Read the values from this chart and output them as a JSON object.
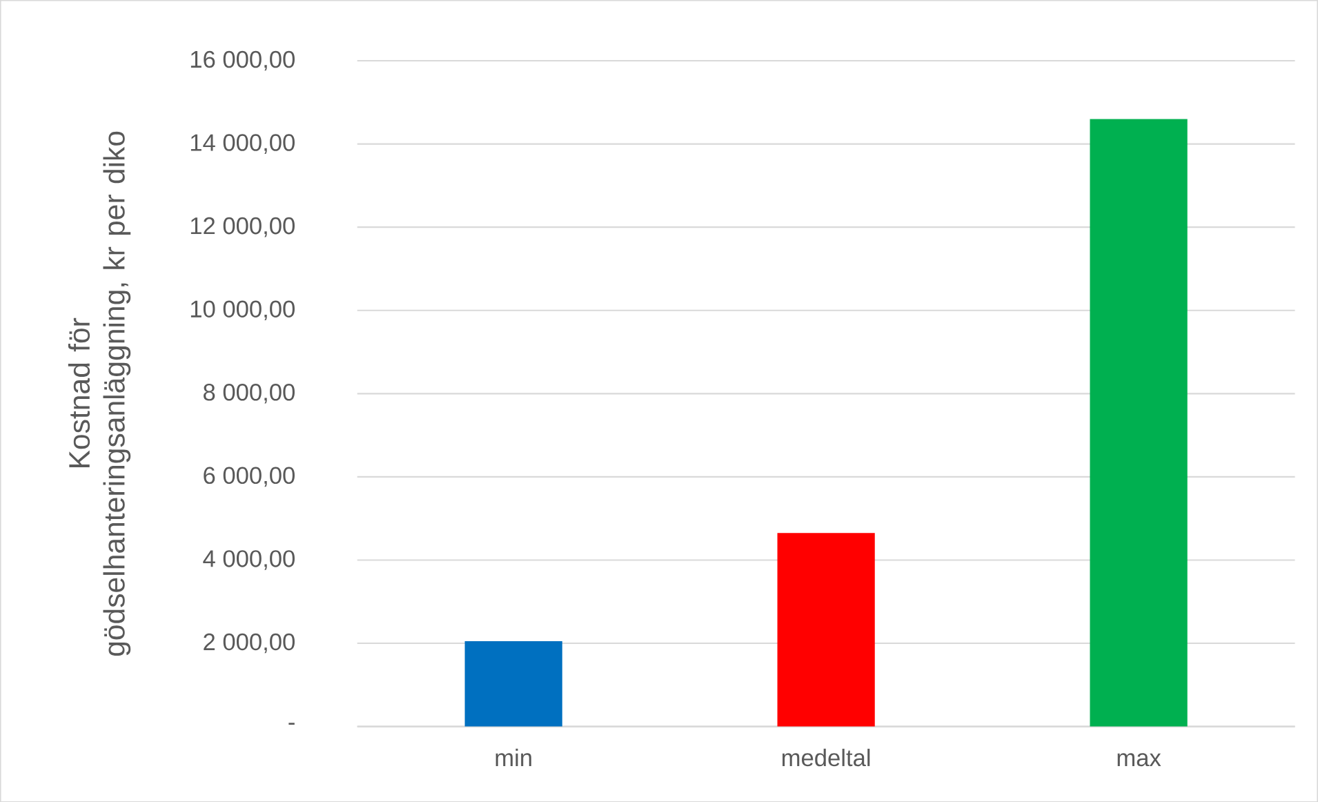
{
  "chart_data": {
    "type": "bar",
    "ylabel": "Kostnad för gödselhanteringsanläggning, kr per diko",
    "categories": [
      "min",
      "medeltal",
      "max"
    ],
    "values": [
      2050,
      4650,
      14600
    ],
    "colors": [
      "#0070c0",
      "#ff0000",
      "#00b050"
    ],
    "ylim": [
      0,
      16000
    ],
    "yticks": [
      {
        "value": 0,
        "label": "-"
      },
      {
        "value": 2000,
        "label": "2 000,00"
      },
      {
        "value": 4000,
        "label": "4 000,00"
      },
      {
        "value": 6000,
        "label": "6 000,00"
      },
      {
        "value": 8000,
        "label": "8 000,00"
      },
      {
        "value": 10000,
        "label": "10 000,00"
      },
      {
        "value": 12000,
        "label": "12 000,00"
      },
      {
        "value": 14000,
        "label": "14 000,00"
      },
      {
        "value": 16000,
        "label": "16 000,00"
      }
    ],
    "grid": "y"
  }
}
